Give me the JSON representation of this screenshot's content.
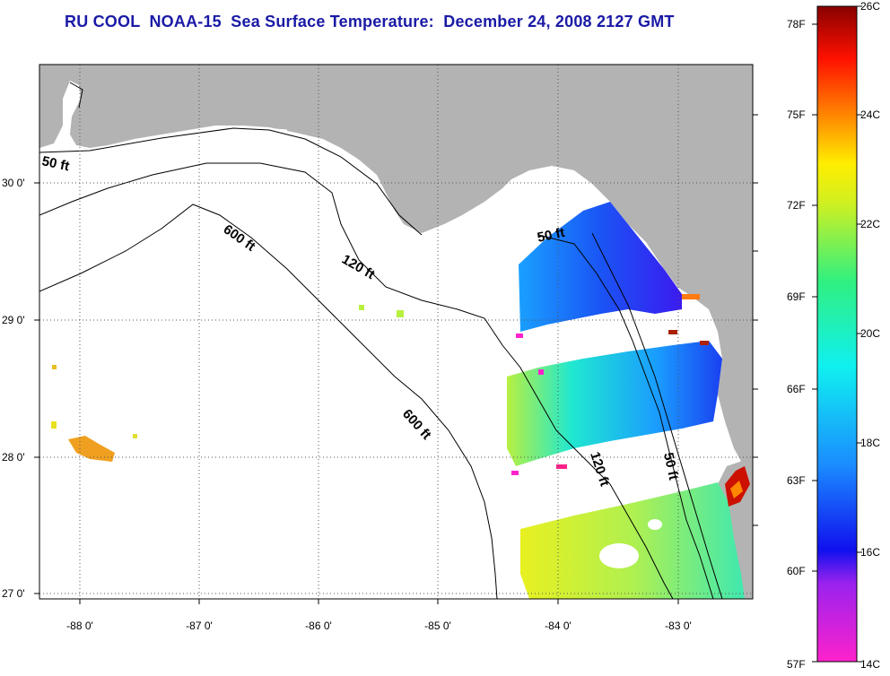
{
  "title": "RU COOL  NOAA-15  Sea Surface Temperature:  December 24, 2008 2127 GMT",
  "latitude_labels": [
    "30 0'",
    "29 0'",
    "28 0'",
    "27 0'"
  ],
  "longitude_labels": [
    "-88 0'",
    "-87 0'",
    "-86 0'",
    "-85 0'",
    "-84 0'",
    "-83 0'"
  ],
  "contour_labels": [
    "50 ft",
    "600 ft",
    "120 ft",
    "50 ft",
    "600 ft",
    "120 ft",
    "50 ft"
  ],
  "colorbar": {
    "fahrenheit_labels": [
      "78F",
      "75F",
      "72F",
      "69F",
      "66F",
      "63F",
      "60F",
      "57F"
    ],
    "celsius_labels": [
      "26C",
      "24C",
      "22C",
      "20C",
      "18C",
      "16C",
      "14C"
    ]
  },
  "colors": {
    "land": "#b3b3b3",
    "water": "#ffffff",
    "title": "#1a1aa6"
  }
}
